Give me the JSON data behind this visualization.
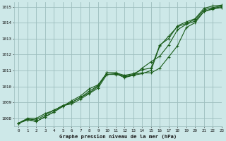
{
  "title": "Graphe pression niveau de la mer (hPa)",
  "bg_color": "#cde8e8",
  "grid_color": "#9dbebe",
  "line_color": "#1a5c1a",
  "xlim": [
    -0.5,
    23
  ],
  "ylim": [
    1007.5,
    1015.3
  ],
  "yticks": [
    1008,
    1009,
    1010,
    1011,
    1012,
    1013,
    1014,
    1015
  ],
  "xticks": [
    0,
    1,
    2,
    3,
    4,
    5,
    6,
    7,
    8,
    9,
    10,
    11,
    12,
    13,
    14,
    15,
    16,
    17,
    18,
    19,
    20,
    21,
    22,
    23
  ],
  "series": [
    [
      1007.7,
      1008.0,
      1008.0,
      1008.3,
      1008.5,
      1008.8,
      1009.0,
      1009.3,
      1009.6,
      1010.0,
      1010.85,
      1010.85,
      1010.7,
      1010.8,
      1011.05,
      1011.15,
      1012.6,
      1013.0,
      1013.8,
      1014.05,
      1014.25,
      1014.9,
      1015.05,
      1015.1
    ],
    [
      1007.7,
      1007.95,
      1007.9,
      1008.2,
      1008.5,
      1008.8,
      1008.9,
      1009.2,
      1009.55,
      1009.9,
      1010.75,
      1010.75,
      1010.65,
      1010.75,
      1010.85,
      1010.85,
      1011.15,
      1011.85,
      1012.55,
      1013.7,
      1014.0,
      1014.7,
      1014.9,
      1015.0
    ],
    [
      1007.7,
      1007.9,
      1007.8,
      1008.1,
      1008.4,
      1008.75,
      1009.1,
      1009.4,
      1009.85,
      1010.1,
      1010.85,
      1010.85,
      1010.6,
      1010.7,
      1010.8,
      1011.0,
      1012.55,
      1013.15,
      1013.75,
      1013.95,
      1014.2,
      1014.8,
      1014.95,
      1015.05
    ],
    [
      1007.7,
      1007.9,
      1007.8,
      1008.1,
      1008.4,
      1008.75,
      1009.0,
      1009.3,
      1009.7,
      1010.05,
      1010.85,
      1010.8,
      1010.55,
      1010.7,
      1011.15,
      1011.55,
      1011.9,
      1012.6,
      1013.55,
      1013.9,
      1014.1,
      1014.7,
      1014.85,
      1014.95
    ]
  ]
}
